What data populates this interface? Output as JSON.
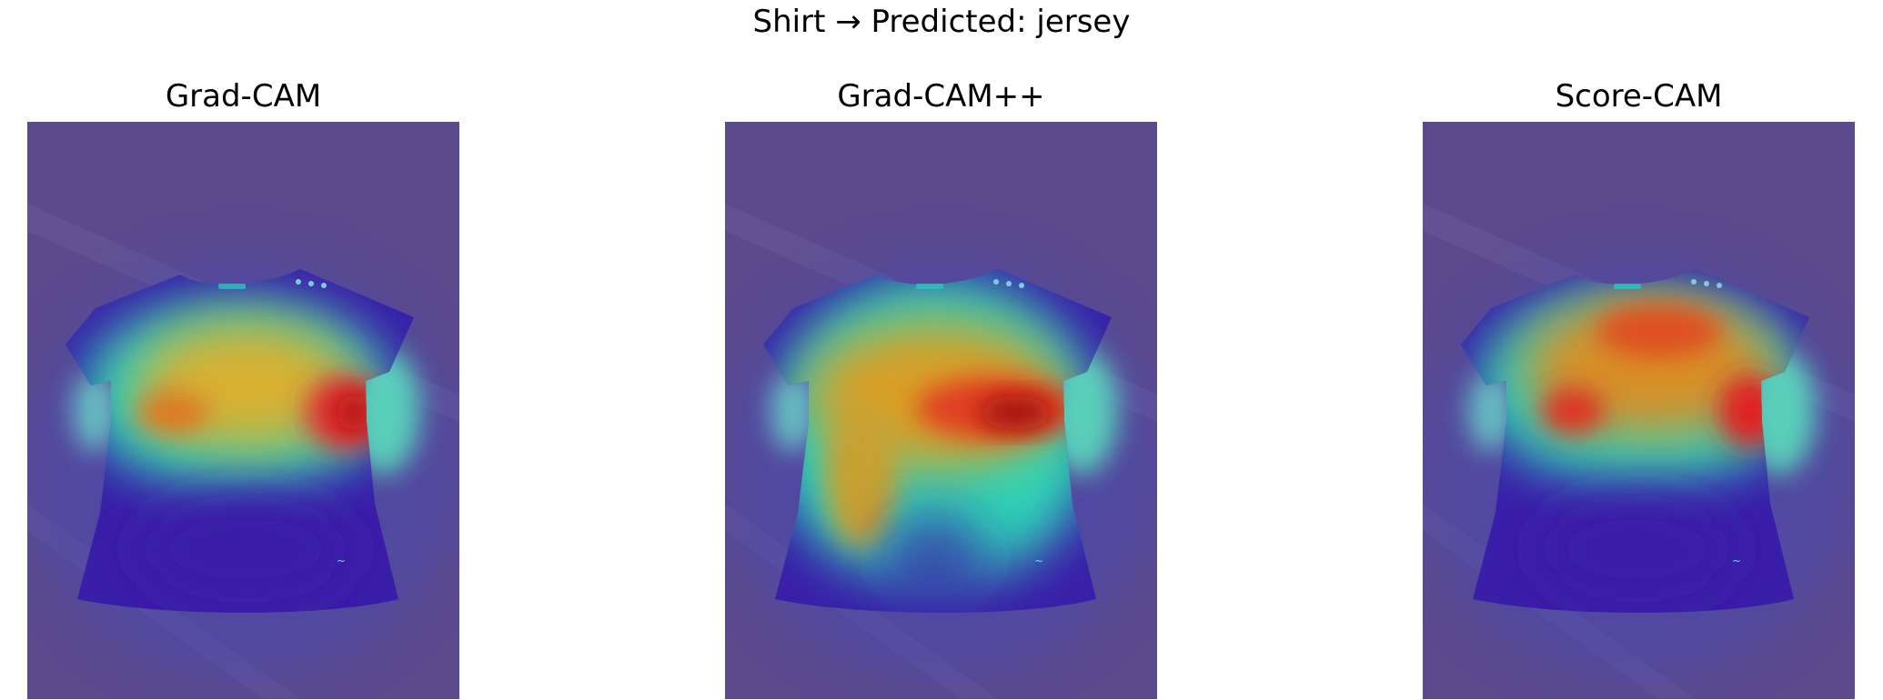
{
  "figure": {
    "suptitle": "Shirt → Predicted: jersey"
  },
  "panels": [
    {
      "title": "Grad-CAM"
    },
    {
      "title": "Grad-CAM++"
    },
    {
      "title": "Score-CAM"
    }
  ],
  "colors": {
    "background_overlay": "#5b4a8c",
    "shirt_low": "#3a1ea8",
    "heat_mid": "#2fd3b8",
    "heat_high": "#f0a020",
    "heat_peak": "#d01818"
  }
}
